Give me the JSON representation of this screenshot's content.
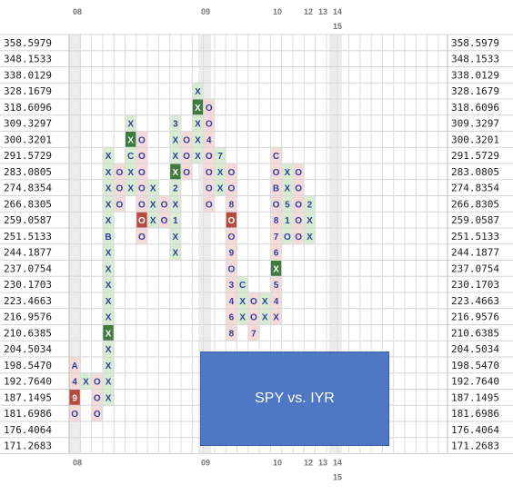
{
  "chart_data": {
    "type": "point-and-figure",
    "title": "SPY vs. IYR",
    "price_levels": [
      "358.5979",
      "348.1533",
      "338.0129",
      "328.1679",
      "318.6096",
      "309.3297",
      "300.3201",
      "291.5729",
      "283.0805",
      "274.8354",
      "266.8305",
      "259.0587",
      "251.5133",
      "244.1877",
      "237.0754",
      "230.1703",
      "223.4663",
      "216.9576",
      "210.6385",
      "204.5034",
      "198.5470",
      "192.7640",
      "187.1495",
      "181.6986",
      "176.4064",
      "171.2683"
    ],
    "year_labels": [
      "08",
      "09",
      "10",
      "12",
      "13",
      "14",
      "15"
    ],
    "columns": [
      {
        "type": "O",
        "cells": {
          "20": "A",
          "21": "4",
          "22": "9",
          "23": "O"
        }
      },
      {
        "type": "X",
        "cells": {
          "21": "X"
        }
      },
      {
        "type": "O",
        "cells": {
          "21": "O",
          "22": "O",
          "23": "O"
        }
      },
      {
        "type": "X",
        "cells": {
          "7": "X",
          "8": "X",
          "9": "X",
          "10": "X",
          "11": "X",
          "12": "B",
          "13": "X",
          "14": "X",
          "15": "X",
          "16": "X",
          "17": "X",
          "18": "X",
          "19": "X",
          "20": "X",
          "21": "X",
          "22": "X"
        }
      },
      {
        "type": "O",
        "cells": {
          "8": "O",
          "9": "O",
          "10": "O"
        }
      },
      {
        "type": "X",
        "cells": {
          "5": "X",
          "6": "X",
          "7": "C",
          "8": "X",
          "9": "X"
        }
      },
      {
        "type": "O",
        "cells": {
          "6": "O",
          "7": "O",
          "8": "O",
          "9": "O",
          "10": "O",
          "11": "O",
          "12": "O"
        }
      },
      {
        "type": "X",
        "cells": {
          "9": "X",
          "10": "X",
          "11": "X"
        }
      },
      {
        "type": "O",
        "cells": {
          "10": "O",
          "11": "O"
        }
      },
      {
        "type": "X",
        "cells": {
          "5": "3",
          "6": "X",
          "7": "X",
          "8": "X",
          "9": "2",
          "10": "X",
          "11": "1",
          "12": "X",
          "13": "X"
        }
      },
      {
        "type": "O",
        "cells": {
          "6": "O",
          "7": "O",
          "8": "O"
        }
      },
      {
        "type": "X",
        "cells": {
          "3": "X",
          "4": "X",
          "5": "X",
          "6": "X",
          "7": "X"
        }
      },
      {
        "type": "O",
        "cells": {
          "4": "O",
          "5": "O",
          "6": "4",
          "7": "O",
          "8": "O",
          "9": "O",
          "10": "O"
        }
      },
      {
        "type": "X",
        "cells": {
          "7": "7",
          "8": "X",
          "9": "X"
        }
      },
      {
        "type": "O",
        "cells": {
          "8": "O",
          "9": "O",
          "10": "8",
          "11": "O",
          "12": "O",
          "13": "9",
          "14": "O",
          "15": "3",
          "16": "4",
          "17": "6",
          "18": "8"
        }
      },
      {
        "type": "X",
        "cells": {
          "15": "C",
          "16": "X",
          "17": "X"
        }
      },
      {
        "type": "O",
        "cells": {
          "16": "O",
          "17": "O",
          "18": "7"
        }
      },
      {
        "type": "X",
        "cells": {
          "16": "X",
          "17": "X"
        }
      },
      {
        "type": "O",
        "cells": {
          "7": "C",
          "8": "O",
          "9": "B",
          "10": "O",
          "11": "8",
          "12": "7",
          "13": "6",
          "14": "X",
          "15": "5",
          "16": "4",
          "17": "X"
        }
      },
      {
        "type": "X",
        "cells": {
          "8": "X",
          "9": "X",
          "10": "5",
          "11": "1",
          "12": "O"
        }
      },
      {
        "type": "O",
        "cells": {
          "8": "O",
          "9": "O",
          "10": "O",
          "11": "O",
          "12": "O"
        }
      },
      {
        "type": "X",
        "cells": {
          "10": "2",
          "11": "X",
          "12": "X"
        }
      }
    ],
    "colors": {
      "x_symbol": "#2f3f9e",
      "o_symbol": "#2f3f9e",
      "red_box": "#b84a44",
      "green_box": "#3f7a3f",
      "column_x_bg": "#d7ecd2",
      "column_o_bg": "#f5dada",
      "legend_bg": "#4f78c4"
    }
  }
}
